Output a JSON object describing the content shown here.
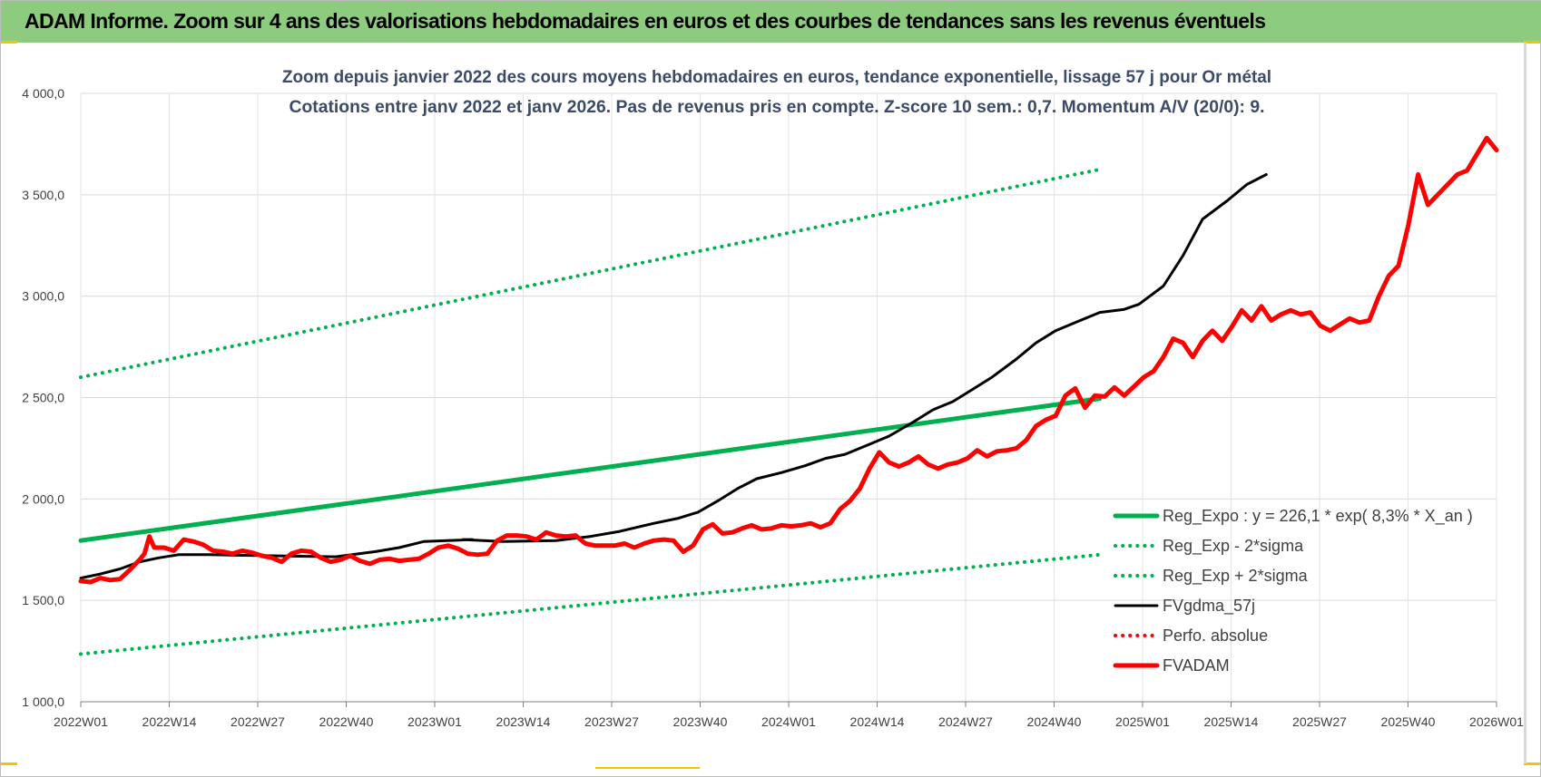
{
  "banner": {
    "title": "ADAM Informe. Zoom sur 4 ans des valorisations hebdomadaires en euros et des courbes de tendances sans les revenus éventuels"
  },
  "chart_data": {
    "type": "line",
    "title": "Zoom depuis janvier 2022 des cours moyens hebdomadaires en euros, tendance exponentielle, lissage 57 j pour Or métal",
    "subtitle": "Cotations entre janv 2022 et janv 2026. Pas de revenus pris en compte. Z-score 10 sem.: 0,7. Momentum A/V (20/0): 9.",
    "xlabel": "",
    "ylabel": "",
    "ylim": [
      1000,
      4000
    ],
    "y_ticks": [
      "1 000,0",
      "1 500,0",
      "2 000,0",
      "2 500,0",
      "3 000,0",
      "3 500,0",
      "4 000,0"
    ],
    "x_ticks": [
      "2022W01",
      "2022W14",
      "2022W27",
      "2022W40",
      "2023W01",
      "2023W14",
      "2023W27",
      "2023W40",
      "2024W01",
      "2024W14",
      "2024W27",
      "2024W40",
      "2025W01",
      "2025W14",
      "2025W27",
      "2025W40",
      "2026W01"
    ],
    "x_index_range": [
      0,
      208
    ],
    "grid": true,
    "legend_placement": "bottom-right",
    "series": [
      {
        "name": "Reg_Expo : y = 226,1 * exp( 8,3% *  X_an )",
        "style": "solid-thick",
        "color": "#00b050",
        "points": [
          [
            0,
            1795
          ],
          [
            208,
            2495
          ]
        ]
      },
      {
        "name": "Reg_Exp - 2*sigma",
        "style": "dotted",
        "color": "#00b050",
        "points": [
          [
            0,
            1235
          ],
          [
            208,
            1725
          ]
        ]
      },
      {
        "name": "Reg_Exp + 2*sigma",
        "style": "dotted",
        "color": "#00b050",
        "points": [
          [
            0,
            2600
          ],
          [
            208,
            3625
          ]
        ]
      },
      {
        "name": "FVgdma_57j",
        "style": "solid",
        "color": "#000000",
        "points": [
          [
            0,
            1610
          ],
          [
            4,
            1630
          ],
          [
            8,
            1655
          ],
          [
            12,
            1690
          ],
          [
            16,
            1710
          ],
          [
            20,
            1725
          ],
          [
            26,
            1725
          ],
          [
            39,
            1720
          ],
          [
            52,
            1715
          ],
          [
            60,
            1740
          ],
          [
            65,
            1760
          ],
          [
            70,
            1790
          ],
          [
            80,
            1800
          ],
          [
            78,
            1800
          ],
          [
            86,
            1790
          ],
          [
            97,
            1795
          ],
          [
            104,
            1815
          ],
          [
            110,
            1840
          ],
          [
            117,
            1880
          ],
          [
            122,
            1905
          ],
          [
            126,
            1935
          ],
          [
            130,
            1990
          ],
          [
            134,
            2050
          ],
          [
            138,
            2100
          ],
          [
            143,
            2130
          ],
          [
            148,
            2165
          ],
          [
            152,
            2200
          ],
          [
            156,
            2220
          ],
          [
            160,
            2260
          ],
          [
            165,
            2310
          ],
          [
            170,
            2380
          ],
          [
            174,
            2440
          ],
          [
            178,
            2480
          ],
          [
            182,
            2540
          ],
          [
            186,
            2600
          ],
          [
            191,
            2690
          ],
          [
            195,
            2770
          ],
          [
            199,
            2830
          ],
          [
            204,
            2880
          ],
          [
            208,
            2920
          ],
          [
            213,
            2935
          ],
          [
            216,
            2960
          ],
          [
            221,
            3050
          ],
          [
            225,
            3200
          ],
          [
            229,
            3380
          ],
          [
            234,
            3470
          ],
          [
            238,
            3550
          ],
          [
            242,
            3600
          ]
        ]
      },
      {
        "name": "Perfo. absolue",
        "style": "dotted",
        "color": "#ff0000",
        "points": []
      },
      {
        "name": "FVADAM",
        "style": "solid-thick",
        "color": "#ff0000",
        "points": [
          [
            0,
            1595
          ],
          [
            2,
            1590
          ],
          [
            4,
            1610
          ],
          [
            6,
            1600
          ],
          [
            8,
            1605
          ],
          [
            10,
            1650
          ],
          [
            12,
            1700
          ],
          [
            13,
            1730
          ],
          [
            14,
            1815
          ],
          [
            15,
            1760
          ],
          [
            17,
            1760
          ],
          [
            19,
            1745
          ],
          [
            21,
            1800
          ],
          [
            23,
            1790
          ],
          [
            25,
            1775
          ],
          [
            27,
            1745
          ],
          [
            29,
            1740
          ],
          [
            31,
            1730
          ],
          [
            33,
            1745
          ],
          [
            35,
            1735
          ],
          [
            37,
            1720
          ],
          [
            39,
            1710
          ],
          [
            41,
            1690
          ],
          [
            43,
            1730
          ],
          [
            45,
            1745
          ],
          [
            47,
            1740
          ],
          [
            49,
            1710
          ],
          [
            51,
            1690
          ],
          [
            53,
            1700
          ],
          [
            55,
            1720
          ],
          [
            57,
            1695
          ],
          [
            59,
            1680
          ],
          [
            61,
            1700
          ],
          [
            63,
            1705
          ],
          [
            65,
            1695
          ],
          [
            67,
            1700
          ],
          [
            69,
            1705
          ],
          [
            71,
            1730
          ],
          [
            73,
            1760
          ],
          [
            75,
            1770
          ],
          [
            77,
            1755
          ],
          [
            79,
            1730
          ],
          [
            81,
            1725
          ],
          [
            83,
            1730
          ],
          [
            85,
            1795
          ],
          [
            87,
            1820
          ],
          [
            89,
            1820
          ],
          [
            91,
            1815
          ],
          [
            93,
            1800
          ],
          [
            95,
            1835
          ],
          [
            97,
            1820
          ],
          [
            99,
            1815
          ],
          [
            101,
            1820
          ],
          [
            103,
            1780
          ],
          [
            105,
            1770
          ],
          [
            107,
            1770
          ],
          [
            109,
            1770
          ],
          [
            111,
            1780
          ],
          [
            113,
            1760
          ],
          [
            115,
            1780
          ],
          [
            117,
            1795
          ],
          [
            119,
            1800
          ],
          [
            121,
            1795
          ],
          [
            123,
            1740
          ],
          [
            125,
            1770
          ],
          [
            127,
            1850
          ],
          [
            129,
            1875
          ],
          [
            131,
            1830
          ],
          [
            133,
            1835
          ],
          [
            135,
            1855
          ],
          [
            137,
            1870
          ],
          [
            139,
            1850
          ],
          [
            141,
            1855
          ],
          [
            143,
            1870
          ],
          [
            145,
            1865
          ],
          [
            147,
            1870
          ],
          [
            149,
            1880
          ],
          [
            151,
            1860
          ],
          [
            153,
            1880
          ],
          [
            155,
            1950
          ],
          [
            157,
            1990
          ],
          [
            159,
            2050
          ],
          [
            161,
            2150
          ],
          [
            163,
            2230
          ],
          [
            165,
            2180
          ],
          [
            167,
            2160
          ],
          [
            169,
            2180
          ],
          [
            171,
            2210
          ],
          [
            173,
            2170
          ],
          [
            175,
            2150
          ],
          [
            177,
            2170
          ],
          [
            179,
            2180
          ],
          [
            181,
            2200
          ],
          [
            183,
            2240
          ],
          [
            185,
            2210
          ],
          [
            187,
            2235
          ],
          [
            189,
            2240
          ],
          [
            191,
            2250
          ],
          [
            193,
            2290
          ],
          [
            195,
            2360
          ],
          [
            197,
            2390
          ],
          [
            199,
            2410
          ],
          [
            201,
            2510
          ],
          [
            203,
            2545
          ],
          [
            205,
            2450
          ],
          [
            207,
            2510
          ],
          [
            209,
            2505
          ],
          [
            211,
            2550
          ],
          [
            213,
            2510
          ],
          [
            215,
            2555
          ],
          [
            217,
            2600
          ],
          [
            219,
            2630
          ],
          [
            221,
            2700
          ],
          [
            223,
            2790
          ],
          [
            225,
            2770
          ],
          [
            227,
            2700
          ],
          [
            229,
            2780
          ],
          [
            231,
            2830
          ],
          [
            233,
            2780
          ],
          [
            235,
            2850
          ],
          [
            237,
            2930
          ],
          [
            239,
            2880
          ],
          [
            241,
            2950
          ],
          [
            243,
            2880
          ],
          [
            245,
            2910
          ],
          [
            247,
            2930
          ],
          [
            249,
            2910
          ],
          [
            251,
            2920
          ],
          [
            253,
            2855
          ],
          [
            255,
            2830
          ],
          [
            257,
            2860
          ],
          [
            259,
            2890
          ],
          [
            261,
            2870
          ],
          [
            263,
            2880
          ],
          [
            265,
            3000
          ],
          [
            267,
            3100
          ],
          [
            269,
            3150
          ],
          [
            271,
            3350
          ],
          [
            273,
            3600
          ],
          [
            275,
            3450
          ],
          [
            277,
            3500
          ],
          [
            279,
            3550
          ],
          [
            281,
            3600
          ],
          [
            283,
            3620
          ],
          [
            285,
            3700
          ],
          [
            287,
            3780
          ],
          [
            289,
            3720
          ]
        ]
      }
    ]
  }
}
